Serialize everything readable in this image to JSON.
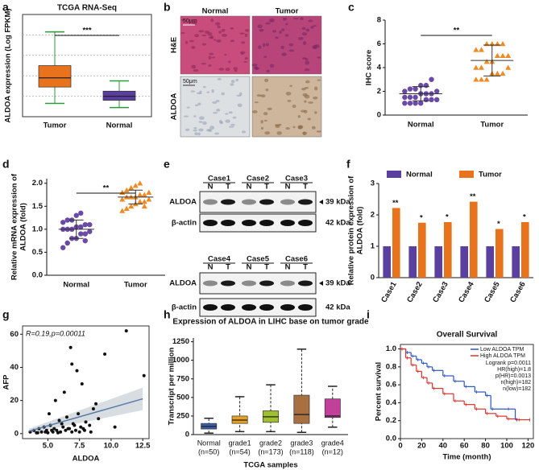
{
  "images": [
    {
      "panel": "b",
      "columns": [
        "Normal",
        "Tumor"
      ],
      "rows": [
        "H&E",
        "ALDOA"
      ],
      "scale_bar": "50μm"
    },
    {
      "panel": "e",
      "cases": [
        "Case1",
        "Case2",
        "Case3",
        "Case4",
        "Case5",
        "Case6"
      ],
      "lanes": [
        "N",
        "T"
      ],
      "rows": [
        "ALDOA",
        "β-actin"
      ],
      "sizes": [
        "39 kDa",
        "42 kDa"
      ]
    }
  ],
  "chart_data": [
    {
      "panel": "a",
      "type": "box",
      "title": "TCGA RNA-Seq",
      "ylabel": "ALDOA expression (Log FPKM)",
      "categories": [
        "Tumor",
        "Normal"
      ],
      "colors": [
        "#e8731c",
        "#5b3fa0"
      ],
      "boxes": [
        {
          "min": 1.3,
          "q1": 2.9,
          "median": 3.8,
          "q3": 5.0,
          "max": 8.3
        },
        {
          "min": 0.9,
          "q1": 1.6,
          "median": 2.0,
          "q3": 2.5,
          "max": 3.5
        }
      ],
      "ylim": [
        0,
        10
      ],
      "significance": "***"
    },
    {
      "panel": "c",
      "type": "dot",
      "ylabel": "IHC score",
      "categories": [
        "Normal",
        "Tumor"
      ],
      "colors": [
        "#6a4aa5",
        "#f08a24"
      ],
      "markers": [
        "circle",
        "triangle"
      ],
      "groups": [
        {
          "values": [
            1,
            1,
            1,
            1,
            1.3,
            1.3,
            1.3,
            1.5,
            1.5,
            1.5,
            1.8,
            1.8,
            1.8,
            2,
            2,
            2.2,
            2.2,
            2.5,
            2.5,
            3
          ],
          "mean": 1.8,
          "sd": 0.6
        },
        {
          "values": [
            3,
            3,
            3,
            3.5,
            3.5,
            3.5,
            4,
            4,
            4,
            4.5,
            4.5,
            5,
            5,
            5,
            5.5,
            5.5,
            6,
            6,
            6,
            6
          ],
          "mean": 4.6,
          "sd": 1.3
        }
      ],
      "ylim": [
        0,
        8
      ],
      "yticks": [
        0,
        2,
        4,
        6,
        8
      ],
      "significance": "**"
    },
    {
      "panel": "d",
      "type": "dot",
      "ylabel": [
        "Relative mRNA expression of",
        "ALDOA (fold)"
      ],
      "categories": [
        "Normal",
        "Tumor"
      ],
      "colors": [
        "#6a4aa5",
        "#f08a24"
      ],
      "markers": [
        "circle",
        "triangle"
      ],
      "groups": [
        {
          "values": [
            0.6,
            0.7,
            0.8,
            0.8,
            0.9,
            0.9,
            0.95,
            1,
            1,
            1,
            1.05,
            1.05,
            1.1,
            1.1,
            1.15,
            1.2,
            1.2,
            1.3,
            1.35,
            0.75
          ],
          "mean": 1.0,
          "sd": 0.2
        },
        {
          "values": [
            1.4,
            1.45,
            1.5,
            1.55,
            1.6,
            1.6,
            1.65,
            1.65,
            1.7,
            1.7,
            1.7,
            1.75,
            1.75,
            1.8,
            1.8,
            1.85,
            1.9,
            1.95,
            2.0,
            1.5
          ],
          "mean": 1.7,
          "sd": 0.15
        }
      ],
      "ylim": [
        0,
        2.1
      ],
      "yticks": [
        {
          "value": 0,
          "label": "0.0"
        },
        0.5,
        {
          "value": 1,
          "label": "1.0"
        },
        1.5,
        {
          "value": 2,
          "label": "2.0"
        }
      ],
      "significance": "**"
    },
    {
      "panel": "f",
      "type": "bar",
      "ylabel": [
        "Relative protein expression of",
        "ALDOA (fold)"
      ],
      "categories": [
        "Case1",
        "Case2",
        "Case3",
        "Case4",
        "Case5",
        "Case6"
      ],
      "series": [
        {
          "name": "Normal",
          "color": "#5b3fa0",
          "values": [
            1,
            1,
            1,
            1,
            1,
            1
          ]
        },
        {
          "name": "Tumor",
          "color": "#e8731c",
          "values": [
            2.22,
            1.75,
            1.77,
            2.42,
            1.55,
            1.77
          ]
        }
      ],
      "significance": [
        "**",
        "*",
        "*",
        "**",
        "*",
        "*"
      ],
      "ylim": [
        0,
        3
      ],
      "yticks": [
        0,
        1,
        2,
        3
      ]
    },
    {
      "panel": "g",
      "type": "scatter",
      "xlabel": "ALDOA",
      "ylabel": "AFP",
      "annotation": "R=0.19,p=0.00011",
      "x": [
        3.6,
        3.9,
        4.1,
        4.3,
        4.5,
        4.7,
        4.9,
        5.0,
        5.2,
        5.4,
        5.5,
        5.7,
        5.9,
        6.0,
        6.2,
        6.4,
        6.5,
        6.7,
        6.9,
        7.0,
        7.2,
        7.4,
        7.6,
        7.8,
        8.0,
        8.3,
        8.6,
        9.0,
        9.5,
        10.3,
        4.2,
        4.8,
        5.3,
        5.8,
        6.1,
        6.6,
        7.1,
        7.5,
        7.9,
        8.4,
        5.1,
        6.3,
        7.3,
        6.8,
        7.7,
        8.8,
        11.2,
        12.6,
        5.6,
        6.9
      ],
      "y": [
        1,
        2,
        0.5,
        3,
        1,
        4,
        2,
        0.5,
        5,
        1,
        3,
        2,
        8,
        1,
        4,
        2,
        10,
        3,
        1,
        6,
        2,
        12,
        4,
        3,
        7,
        5,
        15,
        9,
        48,
        4,
        0.5,
        1,
        2,
        0.5,
        6,
        3,
        5,
        1,
        2,
        1,
        12,
        25,
        38,
        52,
        30,
        18,
        62,
        35,
        20,
        42
      ],
      "trend": {
        "x": [
          3.5,
          12.5
        ],
        "y": [
          1.5,
          21
        ]
      },
      "xlim": [
        3,
        13
      ],
      "ylim": [
        -3,
        65
      ],
      "xticks": [
        {
          "value": 5,
          "label": "5.0"
        },
        7.5,
        {
          "value": 10,
          "label": "10.0"
        },
        12.5
      ],
      "yticks": [
        0,
        20,
        40,
        60
      ]
    },
    {
      "panel": "h",
      "type": "box",
      "title": "Expression of ALDOA in LIHC base on tumor grade",
      "xlabel": "TCGA samples",
      "ylabel": "Transcript per million",
      "categories": [
        "Normal",
        "grade1",
        "grade2",
        "grade3",
        "grade4"
      ],
      "n_labels": [
        "(n=50)",
        "(n=54)",
        "(n=173)",
        "(n=118)",
        "(n=12)"
      ],
      "colors": [
        "#3a5fab",
        "#e8a020",
        "#a0c030",
        "#a87040",
        "#c0409a"
      ],
      "boxes": [
        {
          "min": 20,
          "q1": 75,
          "median": 110,
          "q3": 150,
          "max": 220
        },
        {
          "min": 40,
          "q1": 150,
          "median": 195,
          "q3": 250,
          "max": 510
        },
        {
          "min": 40,
          "q1": 165,
          "median": 240,
          "q3": 320,
          "max": 670
        },
        {
          "min": 30,
          "q1": 150,
          "median": 270,
          "q3": 530,
          "max": 1150
        },
        {
          "min": 100,
          "q1": 230,
          "median": 250,
          "q3": 480,
          "max": 650
        }
      ],
      "ylim": [
        0,
        1300
      ],
      "yticks": [
        0,
        250,
        500,
        750,
        1000,
        1250
      ]
    },
    {
      "panel": "i",
      "type": "survival",
      "title": "Overall Survival",
      "xlabel": "Time (month)",
      "ylabel": "Percent survival",
      "series": [
        {
          "name": "Low ALDOA TPM",
          "color": "#2a55c8",
          "x": [
            0,
            5,
            10,
            15,
            20,
            25,
            30,
            40,
            50,
            60,
            70,
            80,
            85,
            100,
            108
          ],
          "y": [
            1,
            0.96,
            0.92,
            0.88,
            0.84,
            0.8,
            0.76,
            0.7,
            0.64,
            0.58,
            0.52,
            0.48,
            0.33,
            0.33,
            0.21
          ]
        },
        {
          "name": "High ALDOA TPM",
          "color": "#e0302a",
          "x": [
            0,
            5,
            10,
            15,
            20,
            25,
            30,
            40,
            50,
            60,
            70,
            80,
            90,
            100,
            110,
            120
          ],
          "y": [
            1,
            0.9,
            0.82,
            0.75,
            0.68,
            0.62,
            0.56,
            0.5,
            0.42,
            0.38,
            0.33,
            0.28,
            0.25,
            0.22,
            0.21,
            0.21
          ]
        }
      ],
      "annotations": [
        "Logrank p=0.0011",
        "HR(high)=1.8",
        "p(HR)=0.0013",
        "n(high)=182",
        "n(low)=182"
      ],
      "xlim": [
        0,
        125
      ],
      "ylim": [
        0,
        1.05
      ],
      "xticks": [
        0,
        20,
        40,
        60,
        80,
        100,
        120
      ],
      "yticks": [
        {
          "value": 0,
          "label": "0.0"
        },
        0.2,
        0.4,
        0.6,
        0.8,
        {
          "value": 1,
          "label": "1.0"
        }
      ]
    }
  ]
}
